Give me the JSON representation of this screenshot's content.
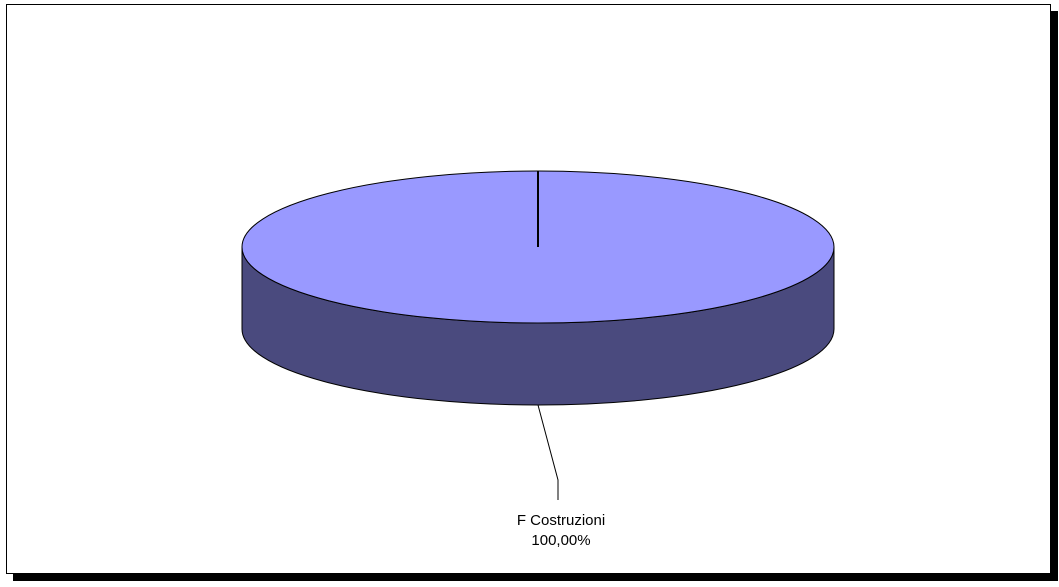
{
  "chart_data": {
    "type": "pie",
    "title": "",
    "three_d": true,
    "slices": [
      {
        "name": "F  Costruzioni",
        "value": 100.0,
        "percent_label": "100,00%"
      }
    ],
    "legend": "none",
    "colors": {
      "top_face": "#9999ff",
      "side_face": "#4a4a7e",
      "outline": "#000000",
      "background": "#ffffff"
    }
  }
}
